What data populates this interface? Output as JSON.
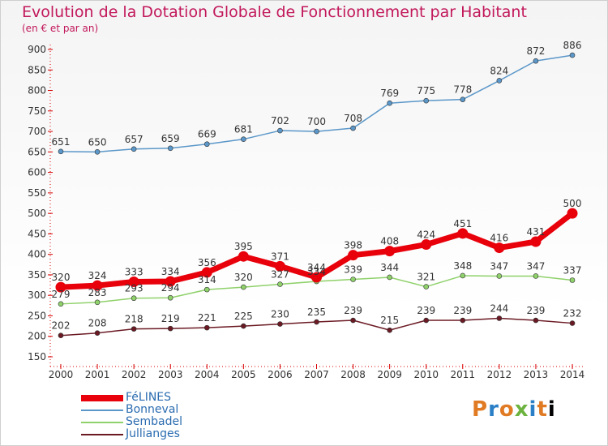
{
  "chart_data": {
    "type": "line",
    "title": "Evolution de la Dotation Globale de Fonctionnement par Habitant",
    "subtitle": "(en € et par an)",
    "x": [
      2000,
      2001,
      2002,
      2003,
      2004,
      2005,
      2006,
      2007,
      2008,
      2009,
      2010,
      2011,
      2012,
      2013,
      2014
    ],
    "ylim": [
      150,
      900
    ],
    "yticks": [
      150,
      200,
      250,
      300,
      350,
      400,
      450,
      500,
      550,
      600,
      650,
      700,
      750,
      800,
      850,
      900
    ],
    "grid": false,
    "legend_position": "bottom-left",
    "series": [
      {
        "name": "FéLINES",
        "color": "#e8000b",
        "values": [
          320,
          324,
          333,
          334,
          356,
          395,
          371,
          344,
          398,
          408,
          424,
          451,
          416,
          431,
          500
        ]
      },
      {
        "name": "Bonneval",
        "color": "#5b97c9",
        "values": [
          651,
          650,
          657,
          659,
          669,
          681,
          702,
          700,
          708,
          769,
          775,
          778,
          824,
          872,
          886
        ]
      },
      {
        "name": "Sembadel",
        "color": "#8fd16a",
        "values": [
          279,
          283,
          293,
          294,
          314,
          320,
          327,
          334,
          339,
          344,
          321,
          348,
          347,
          347,
          337
        ]
      },
      {
        "name": "Jullianges",
        "color": "#6b1a24",
        "values": [
          202,
          208,
          218,
          219,
          221,
          225,
          230,
          235,
          239,
          215,
          239,
          239,
          244,
          239,
          232
        ]
      }
    ]
  },
  "logo": {
    "letters": [
      "P",
      "r",
      "o",
      "x",
      "i",
      "t",
      "i"
    ]
  }
}
